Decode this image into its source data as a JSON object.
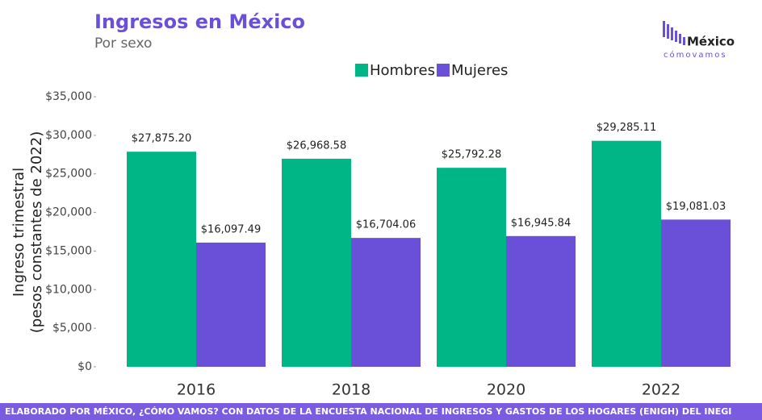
{
  "chart_data": {
    "type": "bar",
    "title": "Ingresos en México",
    "subtitle": "Por sexo",
    "ylabel": [
      "Ingreso trimestral",
      "(pesos constantes de 2022)"
    ],
    "categories": [
      "2016",
      "2018",
      "2020",
      "2022"
    ],
    "series": [
      {
        "name": "Hombres",
        "color": "#00b686",
        "values": [
          27875.2,
          26968.58,
          25792.28,
          29285.11
        ],
        "value_labels": [
          "$27,875.20",
          "$26,968.58",
          "$25,792.28",
          "$29,285.11"
        ]
      },
      {
        "name": "Mujeres",
        "color": "#6a50d9",
        "values": [
          16097.49,
          16704.06,
          16945.84,
          19081.03
        ],
        "value_labels": [
          "$16,097.49",
          "$16,704.06",
          "$16,945.84",
          "$19,081.03"
        ]
      }
    ],
    "ylim": [
      0,
      35000
    ],
    "yticks": [
      {
        "value": 0,
        "label": "$0"
      },
      {
        "value": 5000,
        "label": "$5,000"
      },
      {
        "value": 10000,
        "label": "$10,000"
      },
      {
        "value": 15000,
        "label": "$15,000"
      },
      {
        "value": 20000,
        "label": "$20,000"
      },
      {
        "value": 25000,
        "label": "$25,000"
      },
      {
        "value": 30000,
        "label": "$30,000"
      },
      {
        "value": 35000,
        "label": "$35,000"
      }
    ],
    "grid": false,
    "legend": "top",
    "source": "ELABORADO POR MÉXICO, ¿CÓMO VAMOS? CON DATOS DE LA ENCUESTA NACIONAL DE INGRESOS Y GASTOS DE LOS HOGARES (ENIGH) DEL INEGI"
  },
  "logo": {
    "name": "México",
    "tagline": "cómovamos"
  }
}
